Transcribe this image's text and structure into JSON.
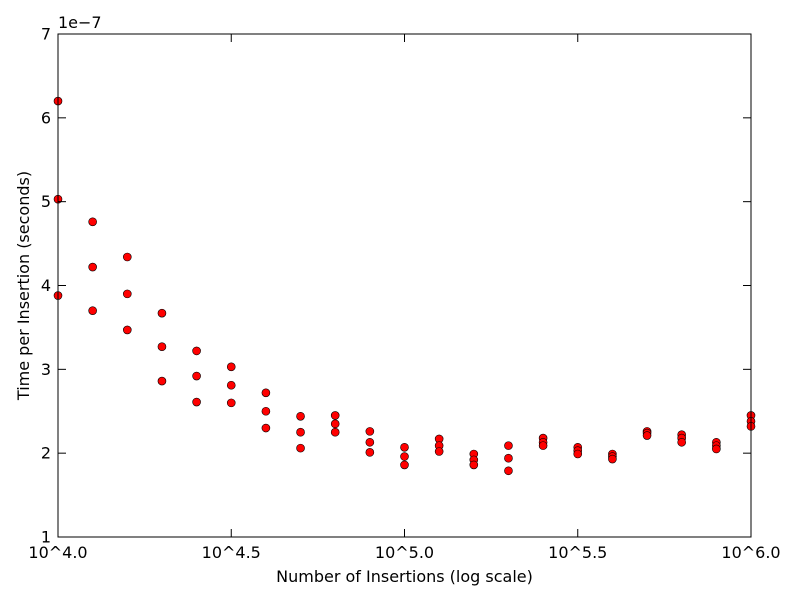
{
  "chart_data": {
    "type": "scatter",
    "title": "",
    "xlabel": "Number of Insertions (log scale)",
    "ylabel": "Time per Insertion (seconds)",
    "x_scale": "log10",
    "xlim": [
      4.0,
      6.0
    ],
    "ylim": [
      1,
      7
    ],
    "y_offset_label": "1e−7",
    "x_ticks": [
      {
        "value": 4.0,
        "label": "10^4.0"
      },
      {
        "value": 4.5,
        "label": "10^4.5"
      },
      {
        "value": 5.0,
        "label": "10^5.0"
      },
      {
        "value": 5.5,
        "label": "10^5.5"
      },
      {
        "value": 6.0,
        "label": "10^6.0"
      }
    ],
    "y_ticks": [
      {
        "value": 1,
        "label": "1"
      },
      {
        "value": 2,
        "label": "2"
      },
      {
        "value": 3,
        "label": "3"
      },
      {
        "value": 4,
        "label": "4"
      },
      {
        "value": 5,
        "label": "5"
      },
      {
        "value": 6,
        "label": "6"
      },
      {
        "value": 7,
        "label": "7"
      }
    ],
    "marker_color": "#ff0000",
    "marker_edge": "#000000",
    "series": [
      {
        "name": "timings",
        "points": [
          [
            4.0,
            6.2
          ],
          [
            4.0,
            5.03
          ],
          [
            4.0,
            3.88
          ],
          [
            4.1,
            4.76
          ],
          [
            4.1,
            4.22
          ],
          [
            4.1,
            3.7
          ],
          [
            4.2,
            4.34
          ],
          [
            4.2,
            3.9
          ],
          [
            4.2,
            3.47
          ],
          [
            4.3,
            3.67
          ],
          [
            4.3,
            3.27
          ],
          [
            4.3,
            2.86
          ],
          [
            4.4,
            3.22
          ],
          [
            4.4,
            2.92
          ],
          [
            4.4,
            2.61
          ],
          [
            4.5,
            3.03
          ],
          [
            4.5,
            2.81
          ],
          [
            4.5,
            2.6
          ],
          [
            4.6,
            2.72
          ],
          [
            4.6,
            2.5
          ],
          [
            4.6,
            2.3
          ],
          [
            4.7,
            2.44
          ],
          [
            4.7,
            2.25
          ],
          [
            4.7,
            2.06
          ],
          [
            4.8,
            2.45
          ],
          [
            4.8,
            2.35
          ],
          [
            4.8,
            2.25
          ],
          [
            4.9,
            2.26
          ],
          [
            4.9,
            2.13
          ],
          [
            4.9,
            2.01
          ],
          [
            5.0,
            2.07
          ],
          [
            5.0,
            1.96
          ],
          [
            5.0,
            1.86
          ],
          [
            5.1,
            2.17
          ],
          [
            5.1,
            2.09
          ],
          [
            5.1,
            2.02
          ],
          [
            5.2,
            1.99
          ],
          [
            5.2,
            1.92
          ],
          [
            5.2,
            1.86
          ],
          [
            5.3,
            2.09
          ],
          [
            5.3,
            1.94
          ],
          [
            5.3,
            1.79
          ],
          [
            5.4,
            2.18
          ],
          [
            5.4,
            2.13
          ],
          [
            5.4,
            2.09
          ],
          [
            5.5,
            2.07
          ],
          [
            5.5,
            2.03
          ],
          [
            5.5,
            1.99
          ],
          [
            5.6,
            1.99
          ],
          [
            5.6,
            1.96
          ],
          [
            5.6,
            1.93
          ],
          [
            5.7,
            2.26
          ],
          [
            5.7,
            2.24
          ],
          [
            5.7,
            2.21
          ],
          [
            5.8,
            2.22
          ],
          [
            5.8,
            2.18
          ],
          [
            5.8,
            2.13
          ],
          [
            5.9,
            2.13
          ],
          [
            5.9,
            2.09
          ],
          [
            5.9,
            2.05
          ],
          [
            6.0,
            2.45
          ],
          [
            6.0,
            2.38
          ],
          [
            6.0,
            2.32
          ]
        ]
      }
    ]
  }
}
